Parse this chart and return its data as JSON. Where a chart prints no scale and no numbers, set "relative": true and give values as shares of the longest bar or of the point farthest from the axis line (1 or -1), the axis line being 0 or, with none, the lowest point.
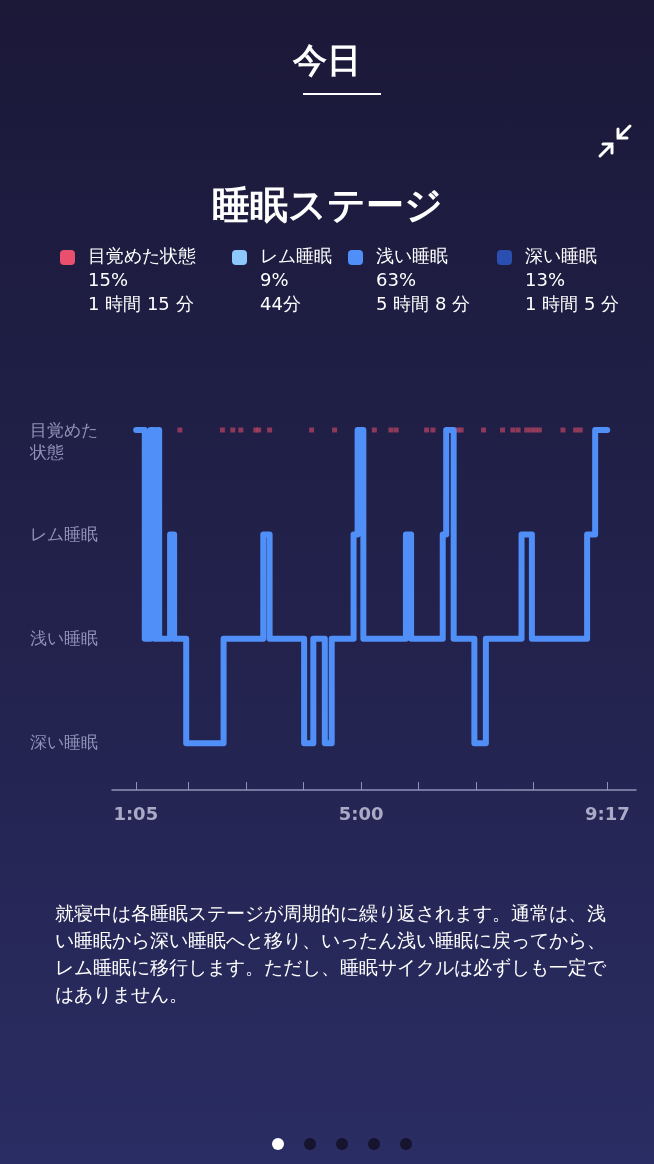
{
  "chart_data": [
    {
      "type": "other",
      "title": "睡眠ステージ",
      "annotations": [
        "今日"
      ],
      "categories": [
        "目覚めた状態",
        "レム睡眠",
        "浅い睡眠",
        "深い睡眠"
      ],
      "colors": [
        "#e8506e",
        "#8cc8fb",
        "#4f8ff7",
        "#2a4fb0"
      ],
      "value_labels": [
        "15%\n1 時間 15 分",
        "9%\n44分",
        "63%\n5 時間 8 分",
        "13%\n1 時間 5 分"
      ]
    },
    {
      "type": "step",
      "relative": true,
      "series": [
        {
          "type": "step",
          "color": "#4f8ff7",
          "x": [
            1.09,
            1.24,
            1.34,
            1.41,
            1.45,
            1.49,
            1.68,
            1.75,
            1.96,
            2.61,
            3.3,
            3.41,
            4.01,
            4.17,
            4.37,
            4.49,
            4.87,
            4.94,
            5.04,
            5.78,
            5.87,
            6.42,
            6.48,
            6.61,
            6.97,
            7.17,
            7.79,
            7.97,
            8.93,
            9.07,
            9.28
          ],
          "values": [
            1,
            0.42,
            1,
            0.42,
            1,
            0.42,
            0.71,
            0.42,
            0.13,
            0.42,
            0.71,
            0.42,
            0.13,
            0.42,
            0.13,
            0.42,
            0.71,
            1,
            0.42,
            0.71,
            0.42,
            0.71,
            1,
            0.42,
            0.13,
            0.42,
            0.71,
            0.42,
            0.71,
            1,
            1
          ]
        },
        {
          "type": "scatter",
          "color": "#a8405f",
          "marker": "square",
          "x": [
            1.85,
            2.59,
            2.77,
            2.91,
            3.17,
            3.22,
            3.41,
            4.14,
            4.54,
            5.23,
            5.52,
            5.61,
            6.14,
            6.25,
            6.68,
            6.74,
            7.13,
            7.46,
            7.64,
            7.73,
            7.88,
            7.96,
            8.03,
            8.1,
            8.51,
            8.73,
            8.81
          ],
          "values": [
            1,
            1,
            1,
            1,
            1,
            1,
            1,
            1,
            1,
            1,
            1,
            1,
            1,
            1,
            1,
            1,
            1,
            1,
            1,
            1,
            1,
            1,
            1,
            1,
            1,
            1,
            1
          ]
        }
      ],
      "xlim": [
        0.67,
        9.78
      ],
      "xticks": [
        {
          "value": 1.0833,
          "label": "1:05"
        },
        {
          "value": 2,
          "label": null
        },
        {
          "value": 3,
          "label": null
        },
        {
          "value": 4,
          "label": null
        },
        {
          "value": 5,
          "label": "5:00"
        },
        {
          "value": 6,
          "label": null
        },
        {
          "value": 7,
          "label": null
        },
        {
          "value": 8,
          "label": null
        },
        {
          "value": 9.2833,
          "label": "9:17"
        }
      ],
      "grid": false,
      "annotations": [
        "目覚めた状態",
        "レム睡眠",
        "浅い睡眠",
        "深い睡眠",
        "就寝中は各睡眠ステージが周期的に繰り返されます。通常は、浅い睡眠から深い睡眠へと移り、いったん浅い睡眠に戻ってから、レム睡眠に移行します。ただし、睡眠サイクルは必ずしも一定ではありません。"
      ]
    }
  ]
}
